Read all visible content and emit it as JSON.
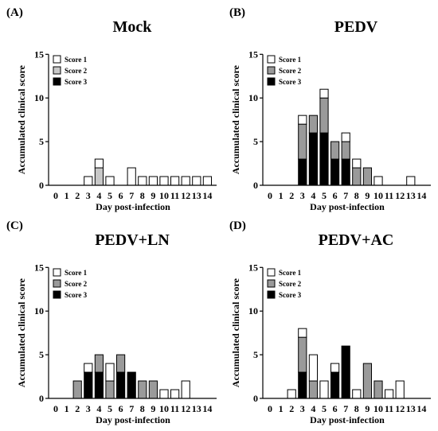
{
  "colors": {
    "score_1": "#ffffff",
    "score_2": "#9a9a9a",
    "score_3": "#000000",
    "mock_score_2": "#c8c8c8",
    "axis": "#000000"
  },
  "chart_data": [
    {
      "type": "bar",
      "stacked": true,
      "panel_label": "(A)",
      "title": "Mock",
      "xlabel": "Day post-infection",
      "ylabel": "Accumulated clinical score",
      "categories": [
        "0",
        "1",
        "2",
        "3",
        "4",
        "5",
        "6",
        "7",
        "8",
        "9",
        "10",
        "11",
        "12",
        "13",
        "14"
      ],
      "ylim": [
        0,
        15
      ],
      "yticks": [
        0,
        5,
        10,
        15
      ],
      "grid": false,
      "legend_position": "top-left",
      "series": [
        {
          "name": "Score 3",
          "values": [
            0,
            0,
            0,
            0,
            0,
            0,
            0,
            0,
            0,
            0,
            0,
            0,
            0,
            0,
            0
          ]
        },
        {
          "name": "Score 2",
          "values": [
            0,
            0,
            0,
            0,
            2,
            0,
            0,
            0,
            0,
            0,
            0,
            0,
            0,
            0,
            0
          ]
        },
        {
          "name": "Score 1",
          "values": [
            0,
            0,
            0,
            1,
            1,
            1,
            0,
            2,
            1,
            1,
            1,
            1,
            1,
            1,
            1
          ]
        }
      ]
    },
    {
      "type": "bar",
      "stacked": true,
      "panel_label": "(B)",
      "title": "PEDV",
      "xlabel": "Day post-infection",
      "ylabel": "Accumulated clinical score",
      "categories": [
        "0",
        "1",
        "2",
        "3",
        "4",
        "5",
        "6",
        "7",
        "8",
        "9",
        "10",
        "11",
        "12",
        "13",
        "14"
      ],
      "ylim": [
        0,
        15
      ],
      "yticks": [
        0,
        5,
        10,
        15
      ],
      "grid": false,
      "legend_position": "top-left",
      "series": [
        {
          "name": "Score 3",
          "values": [
            0,
            0,
            0,
            3,
            6,
            6,
            3,
            3,
            0,
            0,
            0,
            0,
            0,
            0,
            0
          ]
        },
        {
          "name": "Score 2",
          "values": [
            0,
            0,
            0,
            4,
            2,
            4,
            2,
            2,
            2,
            2,
            0,
            0,
            0,
            0,
            0
          ]
        },
        {
          "name": "Score 1",
          "values": [
            0,
            0,
            0,
            1,
            0,
            1,
            0,
            1,
            1,
            0,
            1,
            0,
            0,
            1,
            0
          ]
        }
      ]
    },
    {
      "type": "bar",
      "stacked": true,
      "panel_label": "(C)",
      "title": "PEDV+LN",
      "xlabel": "Day post-infection",
      "ylabel": "Accumulated clinical score",
      "categories": [
        "0",
        "1",
        "2",
        "3",
        "4",
        "5",
        "6",
        "7",
        "8",
        "9",
        "10",
        "11",
        "12",
        "13",
        "14"
      ],
      "ylim": [
        0,
        15
      ],
      "yticks": [
        0,
        5,
        10,
        15
      ],
      "grid": false,
      "legend_position": "top-left",
      "series": [
        {
          "name": "Score 3",
          "values": [
            0,
            0,
            0,
            3,
            3,
            0,
            3,
            3,
            0,
            0,
            0,
            0,
            0,
            0,
            0
          ]
        },
        {
          "name": "Score 2",
          "values": [
            0,
            0,
            2,
            0,
            2,
            2,
            2,
            0,
            2,
            2,
            0,
            0,
            0,
            0,
            0
          ]
        },
        {
          "name": "Score 1",
          "values": [
            0,
            0,
            0,
            1,
            0,
            2,
            0,
            0,
            0,
            0,
            1,
            1,
            2,
            0,
            0
          ]
        }
      ]
    },
    {
      "type": "bar",
      "stacked": true,
      "panel_label": "(D)",
      "title": "PEDV+AC",
      "xlabel": "Day post-infection",
      "ylabel": "Accumulated clinical score",
      "categories": [
        "0",
        "1",
        "2",
        "3",
        "4",
        "5",
        "6",
        "7",
        "8",
        "9",
        "10",
        "11",
        "12",
        "13",
        "14"
      ],
      "ylim": [
        0,
        15
      ],
      "yticks": [
        0,
        5,
        10,
        15
      ],
      "grid": false,
      "legend_position": "top-left",
      "series": [
        {
          "name": "Score 3",
          "values": [
            0,
            0,
            0,
            3,
            0,
            0,
            3,
            6,
            0,
            0,
            0,
            0,
            0,
            0,
            0
          ]
        },
        {
          "name": "Score 2",
          "values": [
            0,
            0,
            0,
            4,
            2,
            0,
            0,
            0,
            0,
            4,
            2,
            0,
            0,
            0,
            0
          ]
        },
        {
          "name": "Score 1",
          "values": [
            0,
            0,
            1,
            1,
            3,
            2,
            1,
            0,
            1,
            0,
            0,
            1,
            2,
            0,
            0
          ]
        }
      ]
    }
  ]
}
